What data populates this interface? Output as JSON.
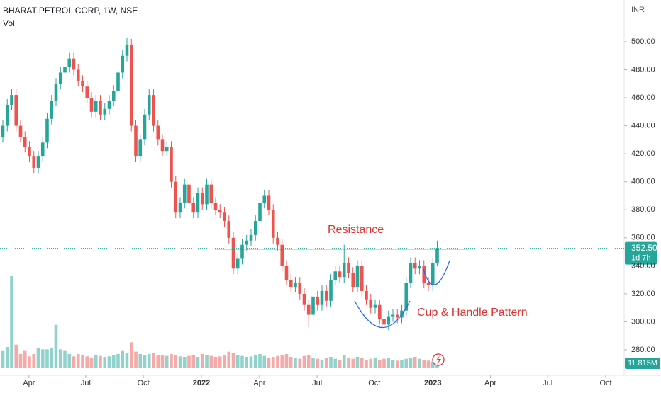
{
  "chart_data": {
    "type": "candlestick",
    "title": "BHARAT PETROL CORP, 1W, NSE",
    "volume_title": "Vol",
    "currency": "INR",
    "up_color": "#26a69a",
    "down_color": "#ef5350",
    "x": [
      0,
      1,
      2,
      3,
      4,
      5,
      6,
      7,
      8,
      9,
      10,
      11,
      12,
      13,
      14,
      15,
      16,
      17,
      18,
      19,
      20,
      21,
      22,
      23,
      24,
      25,
      26,
      27,
      28,
      29,
      30,
      31,
      32,
      33,
      34,
      35,
      36,
      37,
      38,
      39,
      40,
      41,
      42,
      43,
      44,
      45,
      46,
      47,
      48,
      49,
      50,
      51,
      52,
      53,
      54,
      55,
      56,
      57,
      58,
      59,
      60,
      61,
      62,
      63,
      64,
      65,
      66,
      67,
      68,
      69,
      70,
      71,
      72,
      73,
      74,
      75,
      76,
      77,
      78,
      79,
      80,
      81,
      82,
      83,
      84,
      85,
      86,
      87,
      88,
      89,
      90,
      91,
      92,
      93,
      94,
      95,
      96,
      97,
      98
    ],
    "open": [
      432,
      440,
      455,
      462,
      440,
      432,
      425,
      418,
      410,
      418,
      428,
      445,
      458,
      470,
      478,
      482,
      488,
      480,
      472,
      468,
      460,
      450,
      458,
      448,
      452,
      458,
      465,
      478,
      490,
      498,
      440,
      418,
      430,
      448,
      462,
      440,
      430,
      422,
      425,
      400,
      378,
      385,
      398,
      385,
      378,
      392,
      384,
      398,
      385,
      380,
      378,
      372,
      360,
      338,
      345,
      355,
      358,
      362,
      372,
      385,
      390,
      380,
      360,
      355,
      340,
      330,
      325,
      328,
      320,
      312,
      305,
      318,
      312,
      322,
      315,
      330,
      336,
      332,
      342,
      335,
      325,
      340,
      322,
      316,
      310,
      312,
      302,
      298,
      304,
      305,
      303,
      308,
      328,
      342,
      338,
      340,
      328,
      326,
      342
    ],
    "high": [
      444,
      459,
      466,
      466,
      444,
      436,
      429,
      422,
      422,
      432,
      449,
      462,
      474,
      482,
      486,
      492,
      492,
      484,
      476,
      472,
      464,
      462,
      462,
      456,
      462,
      469,
      482,
      494,
      503,
      502,
      444,
      434,
      452,
      466,
      466,
      444,
      434,
      429,
      429,
      404,
      389,
      402,
      402,
      389,
      396,
      396,
      402,
      402,
      389,
      384,
      382,
      376,
      364,
      349,
      359,
      362,
      366,
      376,
      389,
      394,
      394,
      384,
      364,
      359,
      344,
      334,
      332,
      332,
      324,
      316,
      322,
      322,
      326,
      326,
      334,
      340,
      340,
      355,
      346,
      339,
      344,
      344,
      326,
      320,
      316,
      316,
      306,
      308,
      309,
      309,
      312,
      332,
      346,
      346,
      344,
      344,
      332,
      346,
      358
    ],
    "low": [
      428,
      436,
      451,
      436,
      428,
      421,
      414,
      406,
      406,
      414,
      424,
      441,
      454,
      466,
      474,
      478,
      476,
      468,
      464,
      456,
      446,
      446,
      444,
      444,
      448,
      454,
      461,
      474,
      486,
      436,
      414,
      414,
      426,
      444,
      436,
      426,
      418,
      418,
      396,
      374,
      374,
      381,
      381,
      374,
      374,
      380,
      380,
      381,
      376,
      374,
      368,
      356,
      334,
      334,
      341,
      351,
      354,
      358,
      368,
      381,
      376,
      356,
      351,
      336,
      326,
      321,
      321,
      316,
      308,
      296,
      301,
      308,
      308,
      311,
      311,
      326,
      328,
      328,
      331,
      321,
      321,
      318,
      312,
      306,
      306,
      298,
      292,
      294,
      300,
      299,
      299,
      304,
      324,
      334,
      334,
      324,
      322,
      322,
      340
    ],
    "close": [
      440,
      455,
      462,
      440,
      432,
      425,
      418,
      410,
      418,
      428,
      445,
      458,
      470,
      478,
      482,
      488,
      480,
      472,
      468,
      460,
      450,
      458,
      448,
      452,
      458,
      465,
      478,
      490,
      498,
      440,
      418,
      430,
      448,
      462,
      440,
      430,
      422,
      425,
      400,
      378,
      385,
      398,
      385,
      378,
      392,
      384,
      398,
      385,
      380,
      378,
      372,
      360,
      338,
      345,
      355,
      358,
      362,
      372,
      385,
      390,
      380,
      360,
      355,
      340,
      330,
      325,
      328,
      320,
      312,
      305,
      318,
      312,
      322,
      315,
      330,
      336,
      332,
      342,
      335,
      325,
      340,
      322,
      316,
      310,
      312,
      302,
      298,
      304,
      305,
      303,
      308,
      328,
      342,
      338,
      340,
      328,
      326,
      342,
      352.5
    ],
    "volume": [
      38,
      45,
      195,
      50,
      30,
      38,
      25,
      30,
      42,
      40,
      40,
      42,
      92,
      40,
      38,
      30,
      25,
      30,
      28,
      25,
      22,
      28,
      26,
      24,
      25,
      28,
      30,
      38,
      32,
      55,
      35,
      30,
      28,
      30,
      32,
      28,
      27,
      26,
      30,
      28,
      25,
      24,
      26,
      28,
      24,
      30,
      28,
      26,
      24,
      25,
      28,
      35,
      32,
      28,
      26,
      24,
      25,
      28,
      30,
      26,
      22,
      24,
      26,
      28,
      30,
      24,
      22,
      20,
      26,
      28,
      22,
      20,
      18,
      22,
      24,
      20,
      18,
      28,
      22,
      20,
      24,
      22,
      18,
      20,
      22,
      18,
      20,
      22,
      18,
      16,
      18,
      20,
      22,
      24,
      20,
      18,
      16,
      14,
      11.815
    ],
    "last_volume_label": "11.815M",
    "last_price_label": "352.50",
    "countdown": "1d 7h",
    "resistance": 352,
    "annotations": [
      "Resistance",
      "Cup & Handle Pattern"
    ],
    "xlim": [
      -0.64,
      140.16
    ],
    "xticks": [
      {
        "value": 5.9,
        "label": "Apr"
      },
      {
        "value": 18.7,
        "label": "Jul"
      },
      {
        "value": 31.7,
        "label": "Oct"
      },
      {
        "value": 44.8,
        "label": "2022"
      },
      {
        "value": 57.9,
        "label": "Apr"
      },
      {
        "value": 70.9,
        "label": "Jul"
      },
      {
        "value": 83.8,
        "label": "Oct"
      },
      {
        "value": 97,
        "label": "2023"
      },
      {
        "value": 110,
        "label": "Apr"
      },
      {
        "value": 122.9,
        "label": "Jul"
      },
      {
        "value": 136,
        "label": "Oct"
      }
    ],
    "ylim": [
      261.8,
      529.8
    ],
    "yticks": [
      {
        "value": 280,
        "label": "280.00"
      },
      {
        "value": 300,
        "label": "300.00"
      },
      {
        "value": 320,
        "label": "320.00"
      },
      {
        "value": 340,
        "label": "340.00"
      },
      {
        "value": 360,
        "label": "360.00"
      },
      {
        "value": 380,
        "label": "380.00"
      },
      {
        "value": 400,
        "label": "400.00"
      },
      {
        "value": 420,
        "label": "420.00"
      },
      {
        "value": 440,
        "label": "440.00"
      },
      {
        "value": 460,
        "label": "460.00"
      },
      {
        "value": 480,
        "label": "480.00"
      },
      {
        "value": 500,
        "label": "500.00"
      }
    ]
  }
}
